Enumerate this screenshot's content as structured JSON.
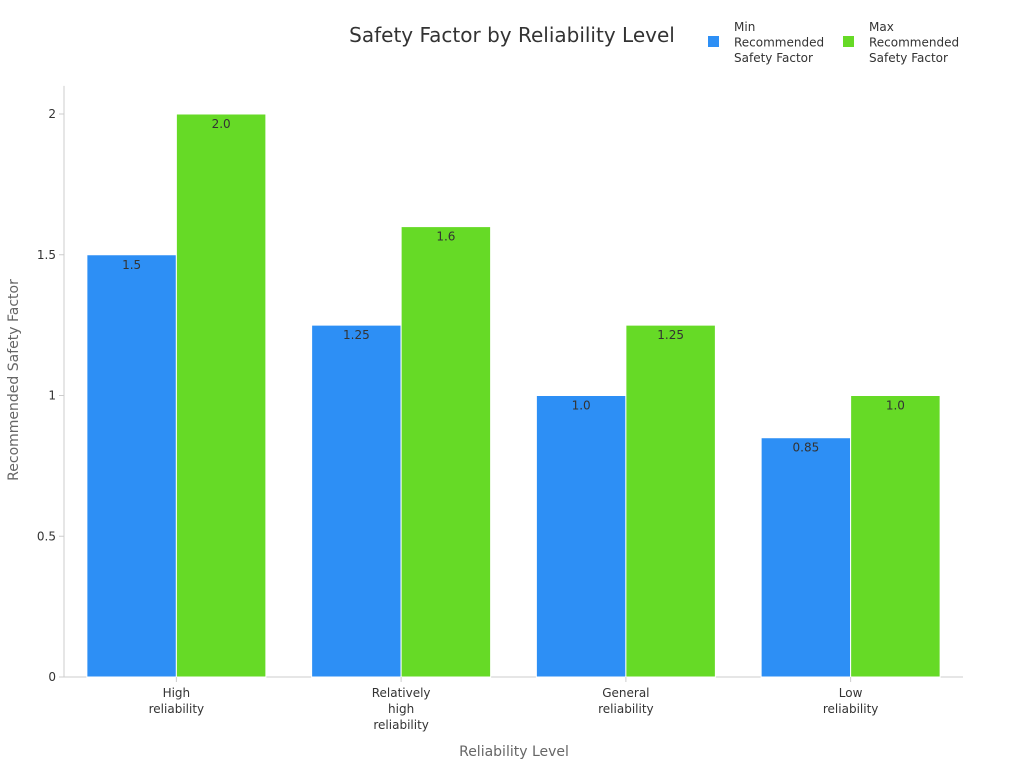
{
  "chart_data": {
    "type": "bar",
    "title": "Safety Factor by Reliability Level",
    "xlabel": "Reliability Level",
    "ylabel": "Recommended Safety Factor",
    "categories": [
      [
        "High",
        "reliability"
      ],
      [
        "Relatively",
        "high",
        "reliability"
      ],
      [
        "General",
        "reliability"
      ],
      [
        "Low",
        "reliability"
      ]
    ],
    "series": [
      {
        "name": [
          "Min",
          "Recommended",
          "Safety Factor"
        ],
        "values": [
          1.5,
          1.25,
          1.0,
          0.85
        ],
        "labels": [
          "1.5",
          "1.25",
          "1.0",
          "0.85"
        ],
        "color": "#2d8ff5"
      },
      {
        "name": [
          "Max",
          "Recommended",
          "Safety Factor"
        ],
        "values": [
          2.0,
          1.6,
          1.25,
          1.0
        ],
        "labels": [
          "2.0",
          "1.6",
          "1.25",
          "1.0"
        ],
        "color": "#66da26"
      }
    ],
    "ylim": [
      0,
      2.1
    ],
    "yticks": [
      0,
      0.5,
      1,
      1.5,
      2
    ],
    "ytick_labels": [
      "0",
      "0.5",
      "1",
      "1.5",
      "2"
    ],
    "grid": false,
    "legend_position": "top-right"
  },
  "colors": {
    "axis": "#cccccc",
    "tick_text": "#333333",
    "title_text": "#333333",
    "label_text": "#666666",
    "value_text": "#333333"
  }
}
